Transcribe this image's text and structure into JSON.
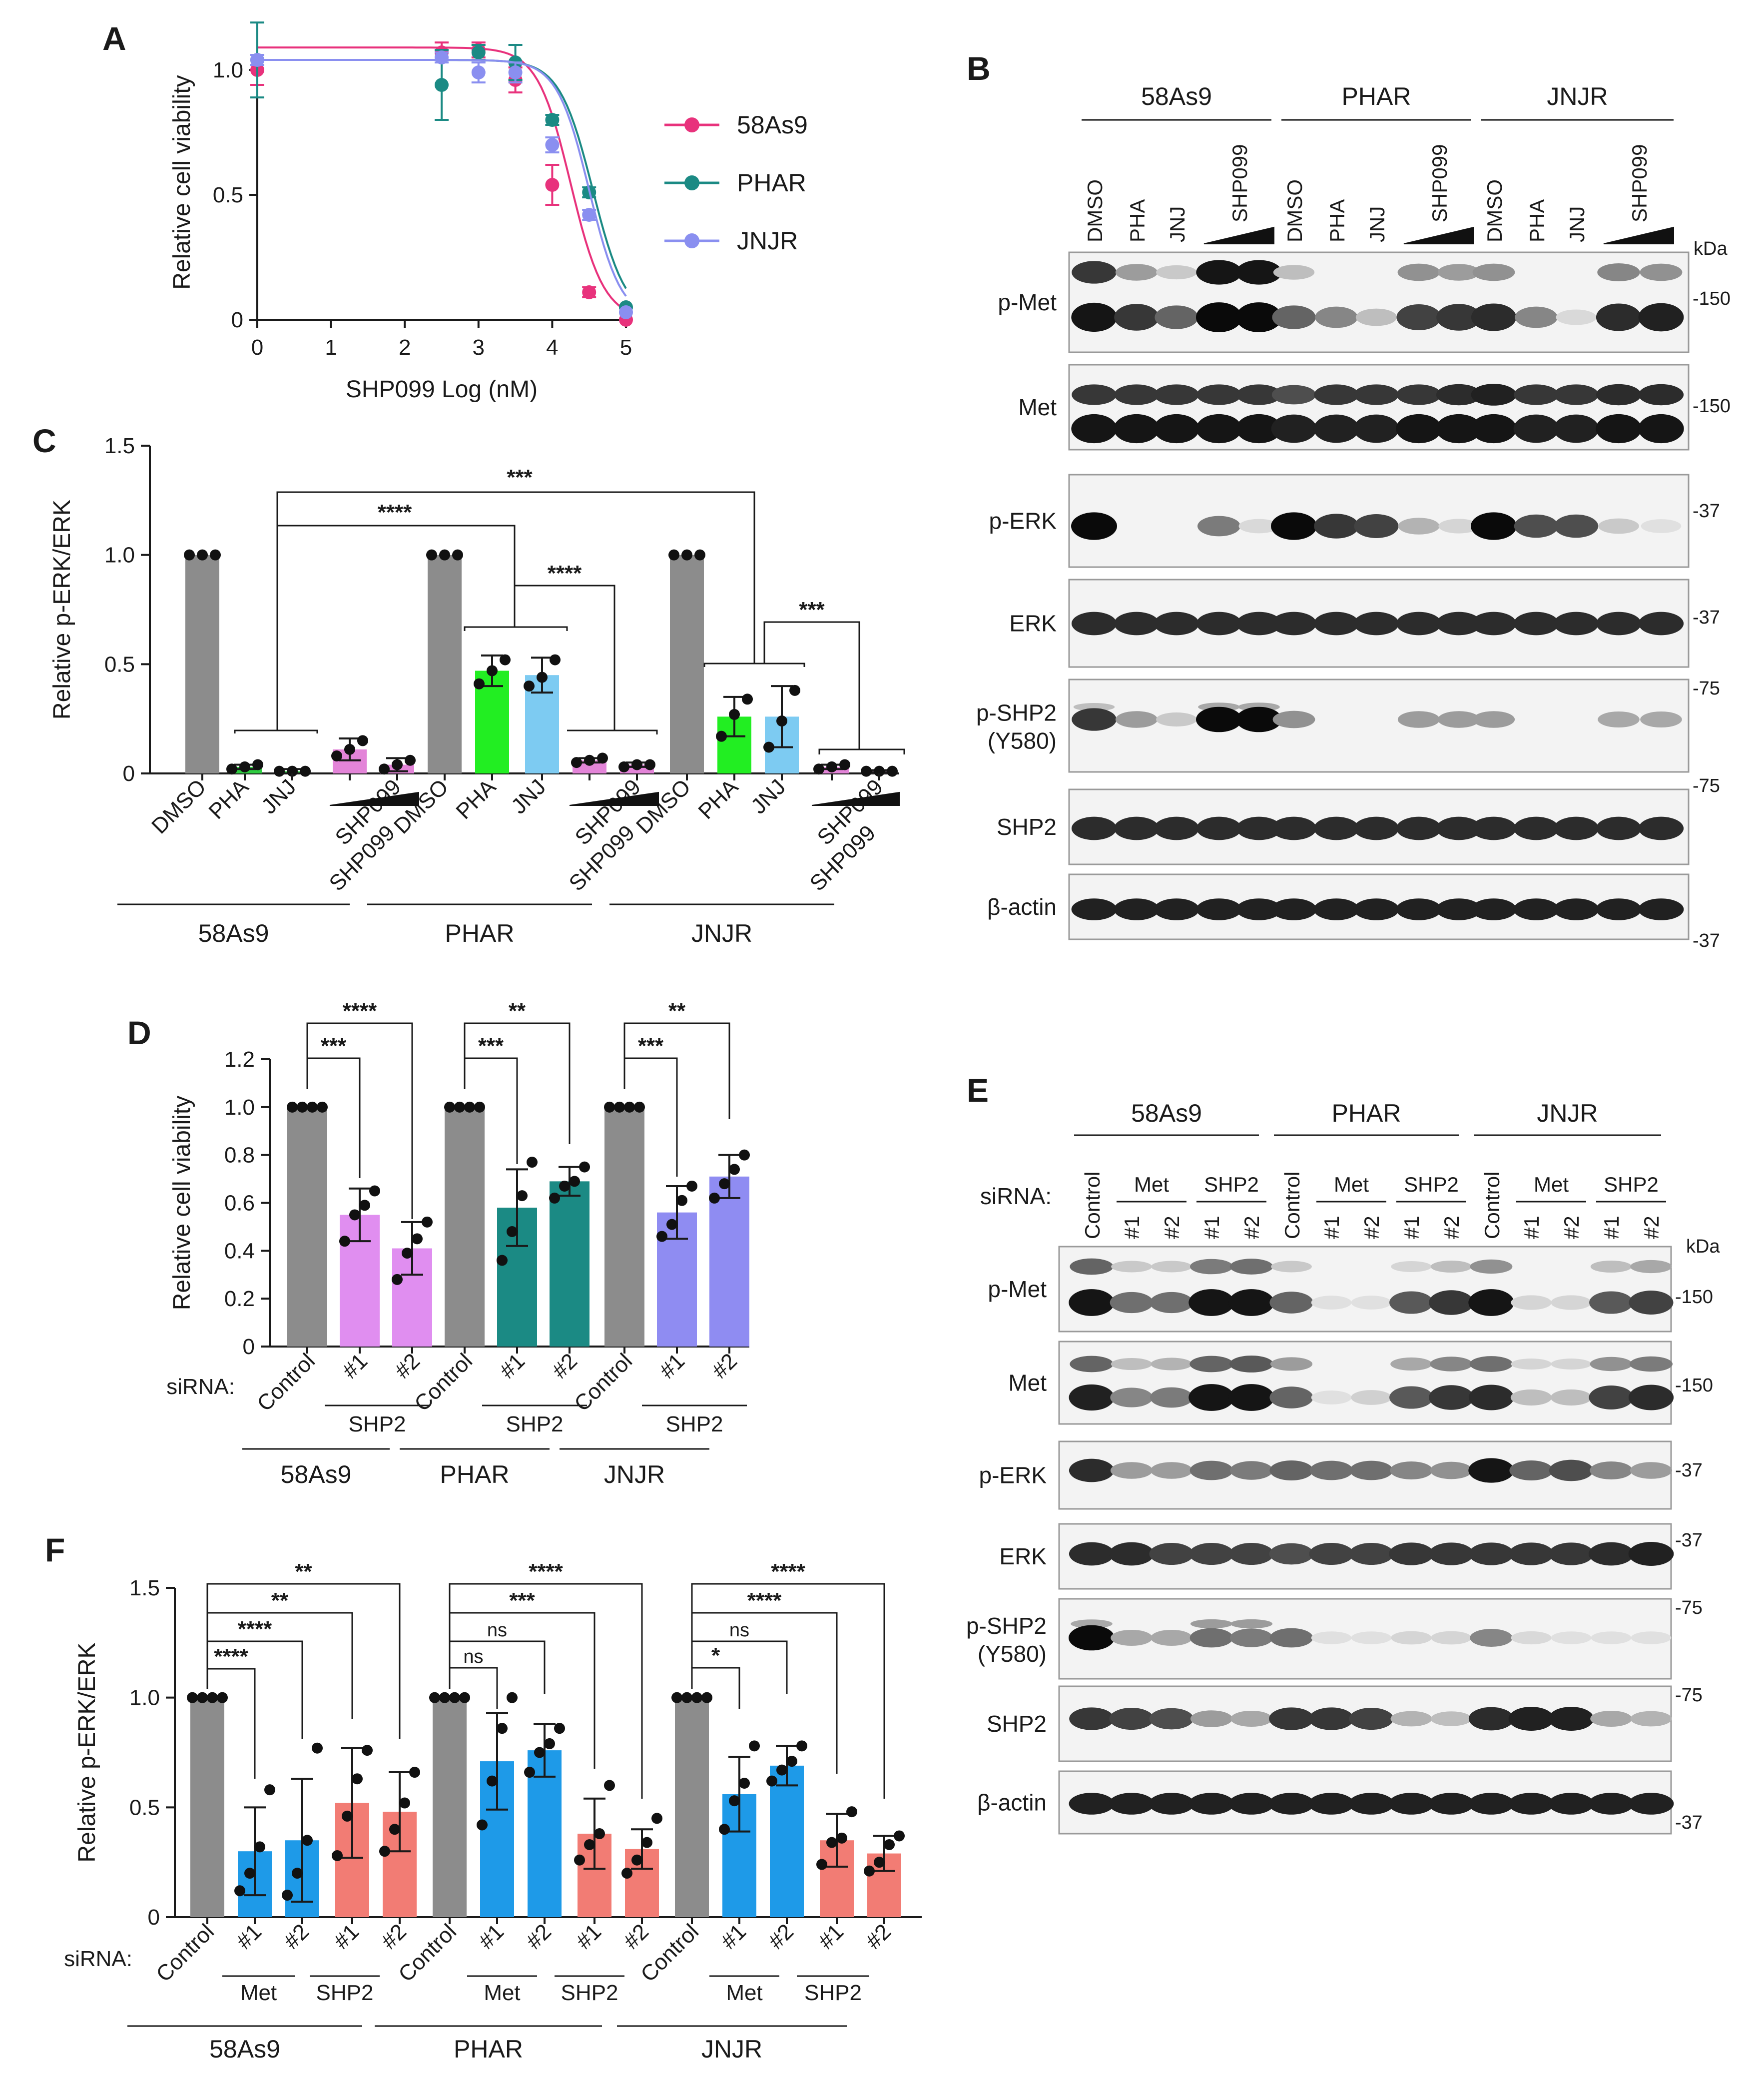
{
  "chart_data": [
    {
      "panel": "A",
      "type": "line",
      "xlabel": "SHP099 Log (nM)",
      "ylabel": "Relative cell viability",
      "xlim": [
        0,
        5
      ],
      "ylim": [
        0,
        1.1
      ],
      "xticks": [
        "0",
        "1",
        "2",
        "3",
        "4",
        "5"
      ],
      "yticks": [
        "0",
        "0.5",
        "1.0"
      ],
      "series": [
        {
          "name": "58As9",
          "color": "#e8327c",
          "ic50": 4.25,
          "top": 1.09,
          "hill": 1.2,
          "x": [
            0,
            2.5,
            3,
            3.5,
            4,
            4.5,
            5
          ],
          "y": [
            1.0,
            1.07,
            1.08,
            0.96,
            0.54,
            0.11,
            0.0
          ],
          "err": [
            0.06,
            0.04,
            0.03,
            0.05,
            0.08,
            0.02,
            0.01
          ]
        },
        {
          "name": "PHAR",
          "color": "#1b8a84",
          "ic50": 4.55,
          "top": 1.04,
          "hill": 1.2,
          "x": [
            0,
            2.5,
            3,
            3.5,
            4,
            4.5,
            5
          ],
          "y": [
            1.04,
            0.94,
            1.07,
            1.03,
            0.8,
            0.51,
            0.05
          ],
          "err": [
            0.15,
            0.14,
            0.03,
            0.07,
            0.02,
            0.02,
            0.01
          ]
        },
        {
          "name": "JNJR",
          "color": "#8a8ff0",
          "ic50": 4.5,
          "top": 1.04,
          "hill": 1.25,
          "x": [
            0,
            2.5,
            3,
            3.5,
            4,
            4.5,
            5
          ],
          "y": [
            1.04,
            1.05,
            0.99,
            0.99,
            0.7,
            0.42,
            0.03
          ],
          "err": [
            0.02,
            0.02,
            0.04,
            0.04,
            0.03,
            0.02,
            0.01
          ]
        }
      ]
    },
    {
      "panel": "C",
      "type": "bar",
      "ylabel": "Relative p-ERK/ERK",
      "ylim": [
        0,
        1.5
      ],
      "yticks": [
        "0",
        "0.5",
        "1.0",
        "1.5"
      ],
      "categories": [
        "DMSO",
        "PHA",
        "JNJ",
        "SHP099",
        "SHP099",
        "DMSO",
        "PHA",
        "JNJ",
        "SHP099",
        "SHP099",
        "DMSO",
        "PHA",
        "JNJ",
        "SHP099",
        "SHP099"
      ],
      "tick_labels": [
        "DMSO",
        "PHA",
        "JNJ",
        "",
        "SHP099",
        "DMSO",
        "PHA",
        "JNJ",
        "",
        "SHP099",
        "DMSO",
        "PHA",
        "JNJ",
        "",
        "SHP099"
      ],
      "groups": [
        "58As9",
        "PHAR",
        "JNJR"
      ],
      "values": [
        1.0,
        0.03,
        0.01,
        0.11,
        0.04,
        1.0,
        0.47,
        0.45,
        0.06,
        0.04,
        1.0,
        0.26,
        0.26,
        0.03,
        0.01
      ],
      "errors": [
        0,
        0.01,
        0.01,
        0.05,
        0.03,
        0,
        0.07,
        0.08,
        0.01,
        0.01,
        0,
        0.09,
        0.14,
        0.01,
        0.005
      ],
      "colors": [
        "#8c8c8c",
        "#2ecc40",
        "#2ecc40",
        "#e384d8",
        "#e384d8",
        "#8c8c8c",
        "#22ee22",
        "#7dcbf2",
        "#e384d8",
        "#e384d8",
        "#8c8c8c",
        "#22ee22",
        "#7dcbf2",
        "#e384d8",
        "#e384d8"
      ],
      "dots": [
        [
          1,
          1,
          1
        ],
        [
          0.02,
          0.03,
          0.04
        ],
        [
          0.01,
          0.01,
          0.01
        ],
        [
          0.08,
          0.11,
          0.15
        ],
        [
          0.02,
          0.04,
          0.06
        ],
        [
          1,
          1,
          1
        ],
        [
          0.41,
          0.47,
          0.52
        ],
        [
          0.4,
          0.44,
          0.52
        ],
        [
          0.05,
          0.06,
          0.07
        ],
        [
          0.03,
          0.04,
          0.04
        ],
        [
          1,
          1,
          1
        ],
        [
          0.17,
          0.27,
          0.34
        ],
        [
          0.12,
          0.24,
          0.38
        ],
        [
          0.02,
          0.03,
          0.04
        ],
        [
          0.01,
          0.01,
          0.01
        ]
      ],
      "significance": [
        "****",
        "***",
        "****",
        "***"
      ]
    },
    {
      "panel": "D",
      "type": "bar",
      "ylabel": "Relative cell viability",
      "ylim": [
        0,
        1.2
      ],
      "yticks": [
        "0",
        "0.2",
        "0.4",
        "0.6",
        "0.8",
        "1.0",
        "1.2"
      ],
      "tick_labels": [
        "Control",
        "#1",
        "#2",
        "Control",
        "#1",
        "#2",
        "Control",
        "#1",
        "#2"
      ],
      "categories": [
        "Control",
        "SHP2 #1",
        "SHP2 #2",
        "Control",
        "SHP2 #1",
        "SHP2 #2",
        "Control",
        "SHP2 #1",
        "SHP2 #2"
      ],
      "groups": [
        "58As9",
        "PHAR",
        "JNJR"
      ],
      "sub_label": "SHP2",
      "values": [
        1.0,
        0.55,
        0.41,
        1.0,
        0.58,
        0.69,
        1.0,
        0.56,
        0.71
      ],
      "errors": [
        0,
        0.11,
        0.11,
        0,
        0.16,
        0.06,
        0,
        0.11,
        0.09
      ],
      "colors": [
        "#8c8c8c",
        "#e08ef0",
        "#e08ef0",
        "#8c8c8c",
        "#1b8a84",
        "#1b8a84",
        "#8c8c8c",
        "#8f8cf2",
        "#8f8cf2"
      ],
      "dots": [
        [
          1,
          1,
          1,
          1
        ],
        [
          0.44,
          0.55,
          0.59,
          0.65
        ],
        [
          0.28,
          0.39,
          0.45,
          0.52
        ],
        [
          1,
          1,
          1,
          1
        ],
        [
          0.36,
          0.48,
          0.63,
          0.77
        ],
        [
          0.62,
          0.67,
          0.69,
          0.75
        ],
        [
          1,
          1,
          1,
          1
        ],
        [
          0.46,
          0.51,
          0.61,
          0.67
        ],
        [
          0.62,
          0.68,
          0.74,
          0.8
        ]
      ],
      "significance": [
        "***",
        "****",
        "***",
        "**",
        "***",
        "**"
      ]
    },
    {
      "panel": "F",
      "type": "bar",
      "ylabel": "Relative p-ERK/ERK",
      "ylim": [
        0,
        1.5
      ],
      "yticks": [
        "0",
        "0.5",
        "1.0",
        "1.5"
      ],
      "tick_labels": [
        "Control",
        "#1",
        "#2",
        "#1",
        "#2",
        "Control",
        "#1",
        "#2",
        "#1",
        "#2",
        "Control",
        "#1",
        "#2",
        "#1",
        "#2"
      ],
      "categories": [
        "Control",
        "Met #1",
        "Met #2",
        "SHP2 #1",
        "SHP2 #2",
        "Control",
        "Met #1",
        "Met #2",
        "SHP2 #1",
        "SHP2 #2",
        "Control",
        "Met #1",
        "Met #2",
        "SHP2 #1",
        "SHP2 #2"
      ],
      "groups": [
        "58As9",
        "PHAR",
        "JNJR"
      ],
      "sub_labels": [
        "Met",
        "SHP2"
      ],
      "values": [
        1.0,
        0.3,
        0.35,
        0.52,
        0.48,
        1.0,
        0.71,
        0.76,
        0.38,
        0.31,
        1.0,
        0.56,
        0.69,
        0.35,
        0.29
      ],
      "errors": [
        0,
        0.2,
        0.28,
        0.25,
        0.18,
        0,
        0.22,
        0.12,
        0.16,
        0.09,
        0,
        0.17,
        0.09,
        0.12,
        0.08
      ],
      "colors": [
        "#8c8c8c",
        "#1e9ae8",
        "#1e9ae8",
        "#f27c74",
        "#f27c74",
        "#8c8c8c",
        "#1e9ae8",
        "#1e9ae8",
        "#f27c74",
        "#f27c74",
        "#8c8c8c",
        "#1e9ae8",
        "#1e9ae8",
        "#f27c74",
        "#f27c74"
      ],
      "dots": [
        [
          1,
          1,
          1,
          1
        ],
        [
          0.12,
          0.2,
          0.32,
          0.58
        ],
        [
          0.1,
          0.2,
          0.35,
          0.77
        ],
        [
          0.28,
          0.46,
          0.63,
          0.76
        ],
        [
          0.3,
          0.4,
          0.52,
          0.66
        ],
        [
          1,
          1,
          1,
          1
        ],
        [
          0.42,
          0.62,
          0.86,
          1.0
        ],
        [
          0.66,
          0.75,
          0.79,
          0.86
        ],
        [
          0.26,
          0.33,
          0.38,
          0.6
        ],
        [
          0.2,
          0.26,
          0.34,
          0.45
        ],
        [
          1,
          1,
          1,
          1
        ],
        [
          0.4,
          0.53,
          0.61,
          0.78
        ],
        [
          0.62,
          0.67,
          0.71,
          0.78
        ],
        [
          0.24,
          0.34,
          0.36,
          0.48
        ],
        [
          0.21,
          0.25,
          0.33,
          0.37
        ]
      ],
      "significance": [
        "****",
        "****",
        "**",
        "**",
        "ns",
        "ns",
        "***",
        "****",
        "*",
        "ns",
        "****",
        "****"
      ]
    }
  ],
  "panel_labels": [
    "A",
    "B",
    "C",
    "D",
    "E",
    "F"
  ],
  "blot_b": {
    "groups": [
      "58As9",
      "PHAR",
      "JNJR"
    ],
    "lanes": [
      "DMSO",
      "PHA",
      "JNJ",
      "SHP099"
    ],
    "kda": "kDa",
    "rows": [
      {
        "label": "p-Met",
        "mw": "-150"
      },
      {
        "label": "Met",
        "mw": "-150"
      },
      {
        "label": "p-ERK",
        "mw": "-37"
      },
      {
        "label": "ERK",
        "mw": "-37"
      },
      {
        "label": "p-SHP2",
        "label2": "(Y580)",
        "mw": "-75"
      },
      {
        "label": "SHP2",
        "mw": "-75"
      },
      {
        "label": "β-actin",
        "mw": "-37"
      }
    ]
  },
  "blot_e": {
    "groups": [
      "58As9",
      "PHAR",
      "JNJR"
    ],
    "siRNA": "siRNA:",
    "control": "Control",
    "met": "Met",
    "shp2": "SHP2",
    "n1": "#1",
    "n2": "#2",
    "kda": "kDa",
    "rows": [
      {
        "label": "p-Met",
        "mw": "-150"
      },
      {
        "label": "Met",
        "mw": "-150"
      },
      {
        "label": "p-ERK",
        "mw": "-37"
      },
      {
        "label": "ERK",
        "mw": "-37"
      },
      {
        "label": "p-SHP2",
        "label2": "(Y580)",
        "mw": "-75"
      },
      {
        "label": "SHP2",
        "mw": "-75"
      },
      {
        "label": "β-actin",
        "mw": "-37"
      }
    ]
  },
  "sirna_label": "siRNA:"
}
